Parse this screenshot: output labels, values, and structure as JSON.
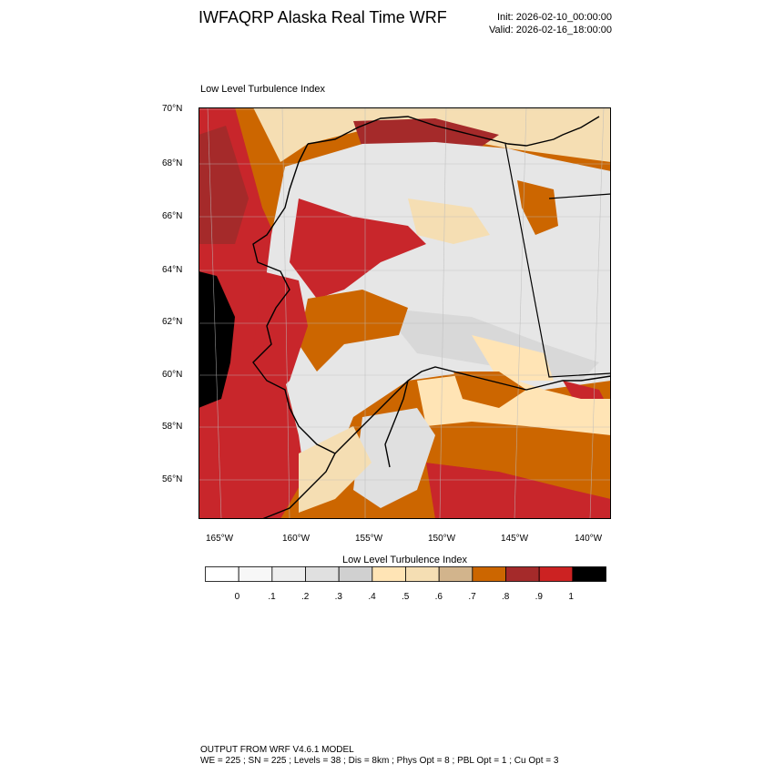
{
  "header": {
    "title": "IWFAQRP Alaska Real Time WRF",
    "init": "Init: 2026-02-10_00:00:00",
    "valid": "Valid: 2026-02-16_18:00:00"
  },
  "map": {
    "subtitle": "Low Level Turbulence Index",
    "lat_labels": [
      "70°N",
      "68°N",
      "66°N",
      "64°N",
      "62°N",
      "60°N",
      "58°N",
      "56°N"
    ],
    "lon_labels": [
      "165°W",
      "160°W",
      "155°W",
      "150°W",
      "145°W",
      "140°W"
    ],
    "colors": {
      "ocean_red": "#c8262b",
      "dark_red": "#a52a2a",
      "orange": "#cc6600",
      "tan": "#d2b48c",
      "wheat": "#f5deb3",
      "moccasin": "#ffe4b5",
      "light_gray": "#e8e8e8",
      "gray": "#d8d8d8",
      "black": "#000000"
    }
  },
  "colorbar": {
    "title": "Low Level Turbulence Index",
    "labels": [
      "0",
      ".1",
      ".2",
      ".3",
      ".4",
      ".5",
      ".6",
      ".7",
      ".8",
      ".9",
      "1"
    ],
    "colors": [
      "#ffffff",
      "#f7f7f7",
      "#eeeeee",
      "#e0e0e0",
      "#d0d0d0",
      "#ffe4b5",
      "#f5deb3",
      "#d2b48c",
      "#cc6600",
      "#a52a2a",
      "#cc2222",
      "#000000"
    ]
  },
  "footer": {
    "line1": "OUTPUT FROM WRF V4.6.1 MODEL",
    "line2": "WE = 225 ; SN = 225 ; Levels = 38 ; Dis = 8km ; Phys Opt = 8 ; PBL Opt = 1 ; Cu Opt = 3"
  }
}
